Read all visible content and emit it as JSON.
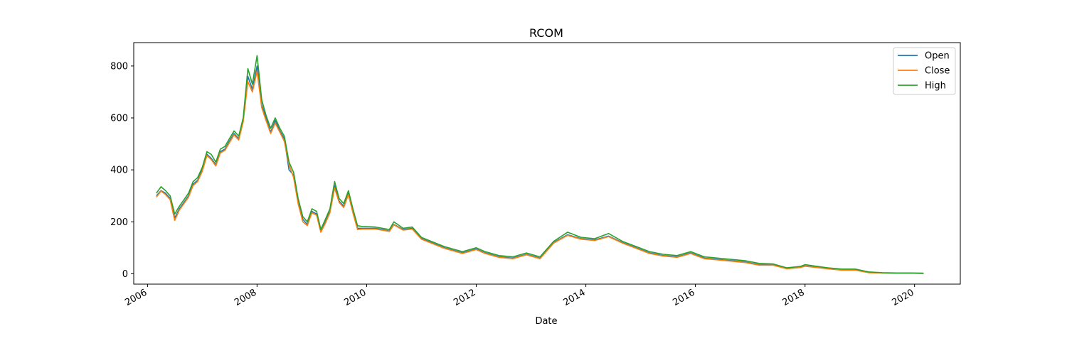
{
  "chart_data": {
    "type": "line",
    "title": "RCOM",
    "xlabel": "Date",
    "ylabel": "",
    "xlim": [
      "2005-10-01",
      "2020-11-01"
    ],
    "ylim": [
      -40,
      890
    ],
    "legend": "top-right",
    "grid": false,
    "x_ticks": [
      "2006",
      "2008",
      "2010",
      "2012",
      "2014",
      "2016",
      "2018",
      "2020"
    ],
    "y_ticks": [
      "0",
      "200",
      "400",
      "600",
      "800"
    ],
    "x": [
      "2006-03-01",
      "2006-04-01",
      "2006-05-01",
      "2006-06-01",
      "2006-07-01",
      "2006-08-01",
      "2006-09-01",
      "2006-10-01",
      "2006-11-01",
      "2006-12-01",
      "2007-01-01",
      "2007-02-01",
      "2007-03-01",
      "2007-04-01",
      "2007-05-01",
      "2007-06-01",
      "2007-07-01",
      "2007-08-01",
      "2007-09-01",
      "2007-10-01",
      "2007-11-01",
      "2007-12-01",
      "2008-01-01",
      "2008-02-01",
      "2008-03-01",
      "2008-04-01",
      "2008-05-01",
      "2008-06-01",
      "2008-07-01",
      "2008-08-01",
      "2008-09-01",
      "2008-10-01",
      "2008-11-01",
      "2008-12-01",
      "2009-01-01",
      "2009-02-01",
      "2009-03-01",
      "2009-04-01",
      "2009-05-01",
      "2009-06-01",
      "2009-07-01",
      "2009-08-01",
      "2009-09-01",
      "2009-10-01",
      "2009-11-01",
      "2009-12-01",
      "2010-03-01",
      "2010-06-01",
      "2010-07-01",
      "2010-09-01",
      "2010-11-01",
      "2011-01-01",
      "2011-06-01",
      "2011-10-01",
      "2012-01-01",
      "2012-03-01",
      "2012-06-01",
      "2012-09-01",
      "2012-12-01",
      "2013-03-01",
      "2013-06-01",
      "2013-09-01",
      "2013-12-01",
      "2014-03-01",
      "2014-06-01",
      "2014-09-01",
      "2014-12-01",
      "2015-03-01",
      "2015-06-01",
      "2015-09-01",
      "2015-12-01",
      "2016-03-01",
      "2016-06-01",
      "2016-09-01",
      "2016-12-01",
      "2017-03-01",
      "2017-06-01",
      "2017-09-01",
      "2017-12-01",
      "2018-01-01",
      "2018-06-01",
      "2018-09-01",
      "2018-12-01",
      "2019-03-01",
      "2019-06-01",
      "2019-09-01",
      "2019-12-01",
      "2020-03-01"
    ],
    "series": [
      {
        "name": "Open",
        "color": "#1f77b4",
        "values": [
          300,
          320,
          310,
          290,
          215,
          250,
          275,
          300,
          345,
          360,
          400,
          460,
          445,
          420,
          470,
          480,
          510,
          540,
          520,
          590,
          760,
          710,
          800,
          650,
          600,
          545,
          590,
          550,
          520,
          400,
          380,
          280,
          210,
          190,
          240,
          230,
          165,
          200,
          240,
          340,
          280,
          260,
          310,
          240,
          175,
          175,
          175,
          165,
          190,
          170,
          175,
          135,
          100,
          80,
          95,
          80,
          65,
          60,
          75,
          60,
          120,
          150,
          135,
          130,
          145,
          120,
          100,
          80,
          70,
          65,
          80,
          60,
          55,
          50,
          45,
          35,
          35,
          20,
          25,
          30,
          20,
          15,
          15,
          5,
          3,
          2,
          2,
          1
        ]
      },
      {
        "name": "Close",
        "color": "#ff7f0e",
        "values": [
          295,
          318,
          305,
          285,
          205,
          245,
          270,
          295,
          340,
          355,
          395,
          455,
          440,
          415,
          465,
          475,
          505,
          535,
          515,
          585,
          740,
          700,
          780,
          640,
          590,
          540,
          580,
          545,
          510,
          420,
          370,
          270,
          200,
          185,
          235,
          225,
          160,
          195,
          235,
          330,
          275,
          255,
          305,
          235,
          170,
          172,
          172,
          163,
          188,
          168,
          172,
          133,
          98,
          78,
          93,
          78,
          63,
          58,
          73,
          58,
          118,
          148,
          133,
          128,
          143,
          118,
          98,
          78,
          68,
          63,
          78,
          58,
          53,
          48,
          43,
          33,
          33,
          19,
          24,
          29,
          19,
          14,
          14,
          4,
          3,
          2,
          2,
          1
        ]
      },
      {
        "name": "High",
        "color": "#2ca02c",
        "values": [
          310,
          335,
          320,
          300,
          230,
          260,
          285,
          310,
          355,
          370,
          410,
          470,
          460,
          430,
          480,
          490,
          520,
          550,
          530,
          600,
          790,
          730,
          840,
          670,
          610,
          560,
          600,
          560,
          530,
          430,
          390,
          290,
          220,
          200,
          250,
          240,
          170,
          210,
          250,
          355,
          290,
          270,
          320,
          250,
          185,
          182,
          180,
          170,
          200,
          175,
          180,
          140,
          105,
          85,
          100,
          85,
          70,
          65,
          80,
          65,
          125,
          160,
          140,
          135,
          155,
          125,
          105,
          85,
          75,
          70,
          85,
          65,
          60,
          55,
          50,
          40,
          38,
          23,
          28,
          35,
          23,
          18,
          18,
          7,
          4,
          3,
          3,
          2
        ]
      }
    ]
  }
}
